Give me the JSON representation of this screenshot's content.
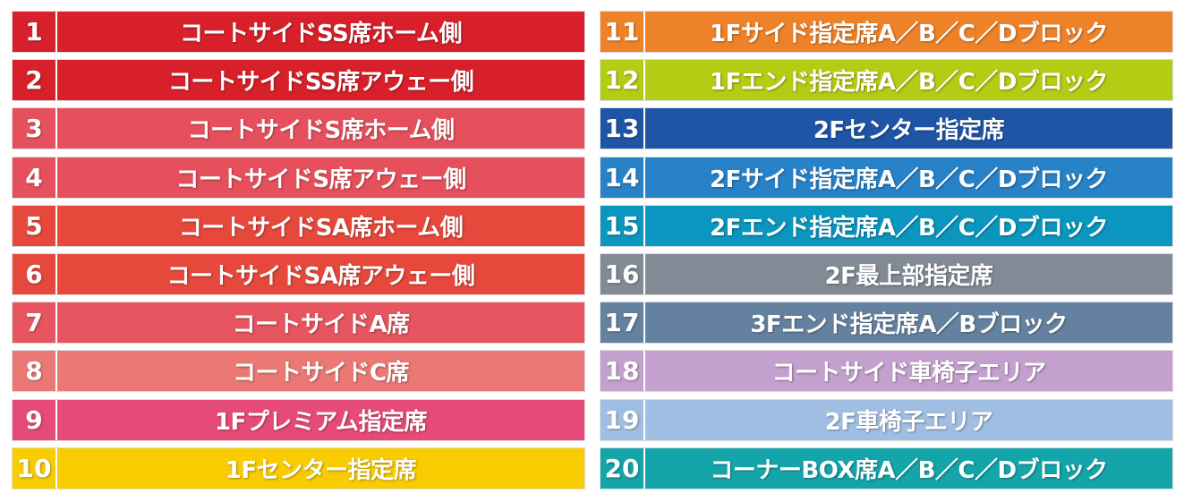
{
  "left_rows": [
    {
      "num": "1",
      "label": "コートサイドSS席ホーム側",
      "color": "#d7202a"
    },
    {
      "num": "2",
      "label": "コートサイドSS席アウェー側",
      "color": "#d7202a"
    },
    {
      "num": "3",
      "label": "コートサイドS席ホーム側",
      "color": "#e6505c"
    },
    {
      "num": "4",
      "label": "コートサイドS席アウェー側",
      "color": "#e6505c"
    },
    {
      "num": "5",
      "label": "コートサイドSA席ホーム側",
      "color": "#e6483c"
    },
    {
      "num": "6",
      "label": "コートサイドSA席アウェー側",
      "color": "#e6483c"
    },
    {
      "num": "7",
      "label": "コートサイドA席",
      "color": "#e65560"
    },
    {
      "num": "8",
      "label": "コートサイドC席",
      "color": "#eb7875"
    },
    {
      "num": "9",
      "label": "1Fプレミアム指定席",
      "color": "#e64a78"
    },
    {
      "num": "10",
      "label": "1Fセンター指定席",
      "color": "#f8cc00"
    }
  ],
  "right_rows": [
    {
      "num": "11",
      "label": "1Fサイド指定席A／B／C／Dブロック",
      "color": "#ee8228"
    },
    {
      "num": "12",
      "label": "1Fエンド指定席A／B／C／Dブロック",
      "color": "#b4cc14"
    },
    {
      "num": "13",
      "label": "2Fセンター指定席",
      "color": "#1e55a5"
    },
    {
      "num": "14",
      "label": "2Fサイド指定席A／B／C／Dブロック",
      "color": "#2882c8"
    },
    {
      "num": "15",
      "label": "2Fエンド指定席A／B／C／Dブロック",
      "color": "#0a96be"
    },
    {
      "num": "16",
      "label": "2F最上部指定席",
      "color": "#828a96"
    },
    {
      "num": "17",
      "label": "3Fエンド指定席A／Bブロック",
      "color": "#6482a0"
    },
    {
      "num": "18",
      "label": "コートサイド車椅子エリア",
      "color": "#c3a0cd"
    },
    {
      "num": "19",
      "label": "2F車椅子エリア",
      "color": "#a0bee1"
    },
    {
      "num": "20",
      "label": "コーナーBOX席A／B／C／Dブロック",
      "color": "#14a5aa"
    }
  ]
}
